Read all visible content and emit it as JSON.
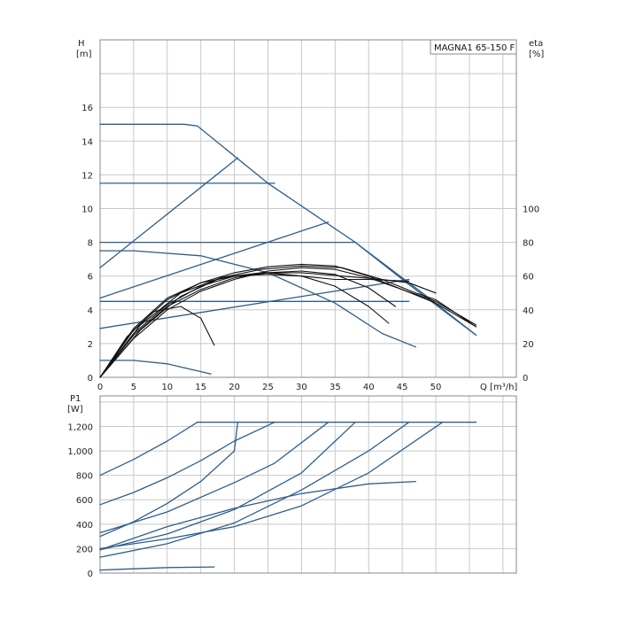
{
  "chart_data": [
    {
      "type": "line",
      "title": "MAGNA1 65-150 F",
      "ylabel": "H",
      "yunit": "[m]",
      "y2label": "eta",
      "y2unit": "[%]",
      "xlabel": "Q [m³/h]",
      "xlim": [
        0,
        62
      ],
      "ylim": [
        0,
        20
      ],
      "y2lim": [
        0,
        200
      ],
      "xticks": [
        "0",
        "5",
        "10",
        "15",
        "20",
        "25",
        "30",
        "35",
        "40",
        "45",
        "50"
      ],
      "yticks": [
        "0",
        "2",
        "4",
        "6",
        "8",
        "10",
        "12",
        "14",
        "16"
      ],
      "y2ticks": [
        "0",
        "20",
        "40",
        "60",
        "80",
        "100"
      ],
      "grid": true,
      "colors": {
        "head": "#2f5d8c",
        "eta": "#111111",
        "grid": "#c8c8c8"
      },
      "series": [
        {
          "kind": "head",
          "points": [
            [
              0,
              15
            ],
            [
              12.5,
              15
            ],
            [
              14.5,
              14.9
            ],
            [
              25,
              11.5
            ],
            [
              38,
              8
            ],
            [
              46,
              5.5
            ],
            [
              56,
              2.5
            ]
          ]
        },
        {
          "kind": "head",
          "points": [
            [
              0,
              11.5
            ],
            [
              26,
              11.5
            ]
          ]
        },
        {
          "kind": "head",
          "points": [
            [
              0,
              8
            ],
            [
              38,
              8
            ]
          ]
        },
        {
          "kind": "head",
          "points": [
            [
              0,
              4.5
            ],
            [
              46,
              4.5
            ]
          ]
        },
        {
          "kind": "head",
          "points": [
            [
              38,
              8
            ],
            [
              48,
              5
            ],
            [
              56,
              2.5
            ]
          ]
        },
        {
          "kind": "head",
          "points": [
            [
              0,
              6.5
            ],
            [
              20.5,
              13
            ]
          ]
        },
        {
          "kind": "head",
          "points": [
            [
              0,
              4.7
            ],
            [
              34,
              9.2
            ]
          ]
        },
        {
          "kind": "head",
          "points": [
            [
              0,
              2.9
            ],
            [
              46,
              5.8
            ]
          ]
        },
        {
          "kind": "head",
          "points": [
            [
              0,
              7.5
            ],
            [
              5,
              7.5
            ],
            [
              15,
              7.2
            ],
            [
              25,
              6.2
            ],
            [
              35,
              4.4
            ],
            [
              42,
              2.6
            ],
            [
              47,
              1.8
            ]
          ]
        },
        {
          "kind": "head",
          "points": [
            [
              0,
              1
            ],
            [
              5,
              1
            ],
            [
              10,
              0.8
            ],
            [
              16.5,
              0.2
            ]
          ]
        },
        {
          "kind": "eta",
          "points": [
            [
              0,
              0
            ],
            [
              5,
              2.5
            ],
            [
              10,
              4.2
            ],
            [
              15,
              5.2
            ],
            [
              20,
              5.9
            ],
            [
              25,
              6.2
            ],
            [
              30,
              6.3
            ],
            [
              35,
              6.1
            ],
            [
              40,
              5.3
            ],
            [
              44,
              4.2
            ]
          ]
        },
        {
          "kind": "eta",
          "points": [
            [
              0,
              0
            ],
            [
              5,
              2.8
            ],
            [
              10,
              4.6
            ],
            [
              15,
              5.6
            ],
            [
              20,
              6.2
            ],
            [
              25,
              6.55
            ],
            [
              30,
              6.7
            ],
            [
              35,
              6.6
            ],
            [
              40,
              6.0
            ],
            [
              45,
              5.2
            ],
            [
              50,
              4.5
            ],
            [
              56,
              3.1
            ]
          ]
        },
        {
          "kind": "eta",
          "points": [
            [
              0,
              0
            ],
            [
              4,
              2.4
            ],
            [
              8,
              3.9
            ],
            [
              12,
              4.2
            ],
            [
              15,
              3.5
            ],
            [
              17,
              1.9
            ]
          ]
        },
        {
          "kind": "eta",
          "points": [
            [
              0,
              0
            ],
            [
              5,
              2.9
            ],
            [
              10,
              4.7
            ],
            [
              15,
              5.6
            ],
            [
              20,
              6.0
            ],
            [
              25,
              6.1
            ],
            [
              30,
              6.0
            ],
            [
              35,
              5.8
            ],
            [
              40,
              5.8
            ],
            [
              46,
              5.7
            ]
          ]
        },
        {
          "kind": "eta",
          "points": [
            [
              0,
              0
            ],
            [
              6,
              2.8
            ],
            [
              12,
              4.8
            ],
            [
              18,
              5.9
            ],
            [
              24,
              6.4
            ],
            [
              30,
              6.6
            ],
            [
              36,
              6.5
            ],
            [
              42,
              5.8
            ],
            [
              47,
              5.0
            ],
            [
              50,
              4.6
            ],
            [
              56,
              3.0
            ]
          ]
        },
        {
          "kind": "eta",
          "points": [
            [
              0,
              0
            ],
            [
              5,
              2.3
            ],
            [
              10,
              4.0
            ],
            [
              15,
              5.1
            ],
            [
              20,
              5.8
            ],
            [
              25,
              6.3
            ],
            [
              30,
              6.5
            ],
            [
              35,
              6.4
            ],
            [
              40,
              5.9
            ],
            [
              45,
              5.2
            ],
            [
              50,
              4.4
            ],
            [
              56,
              3.0
            ]
          ]
        },
        {
          "kind": "eta",
          "points": [
            [
              0,
              0
            ],
            [
              5,
              2.6
            ],
            [
              10,
              4.3
            ],
            [
              15,
              5.4
            ],
            [
              20,
              6.0
            ],
            [
              25,
              6.2
            ],
            [
              30,
              6.0
            ],
            [
              35,
              5.4
            ],
            [
              40,
              4.2
            ],
            [
              43,
              3.2
            ]
          ]
        },
        {
          "kind": "eta",
          "points": [
            [
              0,
              0
            ],
            [
              6,
              3.1
            ],
            [
              12,
              5.0
            ],
            [
              18,
              5.9
            ],
            [
              24,
              6.2
            ],
            [
              30,
              6.2
            ],
            [
              36,
              6.0
            ],
            [
              42,
              5.8
            ],
            [
              46,
              5.6
            ],
            [
              50,
              5.0
            ]
          ]
        }
      ]
    },
    {
      "type": "line",
      "ylabel": "P1",
      "yunit": "[W]",
      "xlim": [
        0,
        62
      ],
      "ylim": [
        0,
        1450
      ],
      "yticks": [
        "0",
        "200",
        "400",
        "600",
        "800",
        "1,000",
        "1,200"
      ],
      "grid": true,
      "colors": {
        "power": "#2f5d8c",
        "grid": "#c8c8c8"
      },
      "series": [
        {
          "kind": "power",
          "points": [
            [
              14.5,
              1235
            ],
            [
              56,
              1235
            ]
          ]
        },
        {
          "kind": "power",
          "points": [
            [
              0,
              800
            ],
            [
              5,
              930
            ],
            [
              10,
              1080
            ],
            [
              14.5,
              1235
            ]
          ]
        },
        {
          "kind": "power",
          "points": [
            [
              0,
              560
            ],
            [
              5,
              660
            ],
            [
              10,
              780
            ],
            [
              15,
              920
            ],
            [
              20,
              1080
            ],
            [
              26,
              1235
            ]
          ]
        },
        {
          "kind": "power",
          "points": [
            [
              0,
              300
            ],
            [
              5,
              420
            ],
            [
              10,
              570
            ],
            [
              15,
              750
            ],
            [
              20,
              1000
            ],
            [
              20.5,
              1235
            ]
          ]
        },
        {
          "kind": "power",
          "points": [
            [
              0,
              330
            ],
            [
              10,
              500
            ],
            [
              20,
              740
            ],
            [
              26,
              900
            ],
            [
              34,
              1235
            ]
          ]
        },
        {
          "kind": "power",
          "points": [
            [
              0,
              190
            ],
            [
              10,
              320
            ],
            [
              20,
              520
            ],
            [
              30,
              820
            ],
            [
              38,
              1235
            ]
          ]
        },
        {
          "kind": "power",
          "points": [
            [
              0,
              130
            ],
            [
              10,
              240
            ],
            [
              20,
              410
            ],
            [
              30,
              680
            ],
            [
              40,
              1000
            ],
            [
              46,
              1235
            ]
          ]
        },
        {
          "kind": "power",
          "points": [
            [
              0,
              200
            ],
            [
              10,
              280
            ],
            [
              20,
              380
            ],
            [
              30,
              550
            ],
            [
              40,
              820
            ],
            [
              51,
              1235
            ]
          ]
        },
        {
          "kind": "power",
          "points": [
            [
              0,
              190
            ],
            [
              10,
              380
            ],
            [
              20,
              530
            ],
            [
              30,
              650
            ],
            [
              40,
              730
            ],
            [
              47,
              750
            ]
          ]
        },
        {
          "kind": "power",
          "points": [
            [
              0,
              25
            ],
            [
              5,
              35
            ],
            [
              10,
              45
            ],
            [
              17,
              50
            ]
          ]
        }
      ]
    }
  ]
}
